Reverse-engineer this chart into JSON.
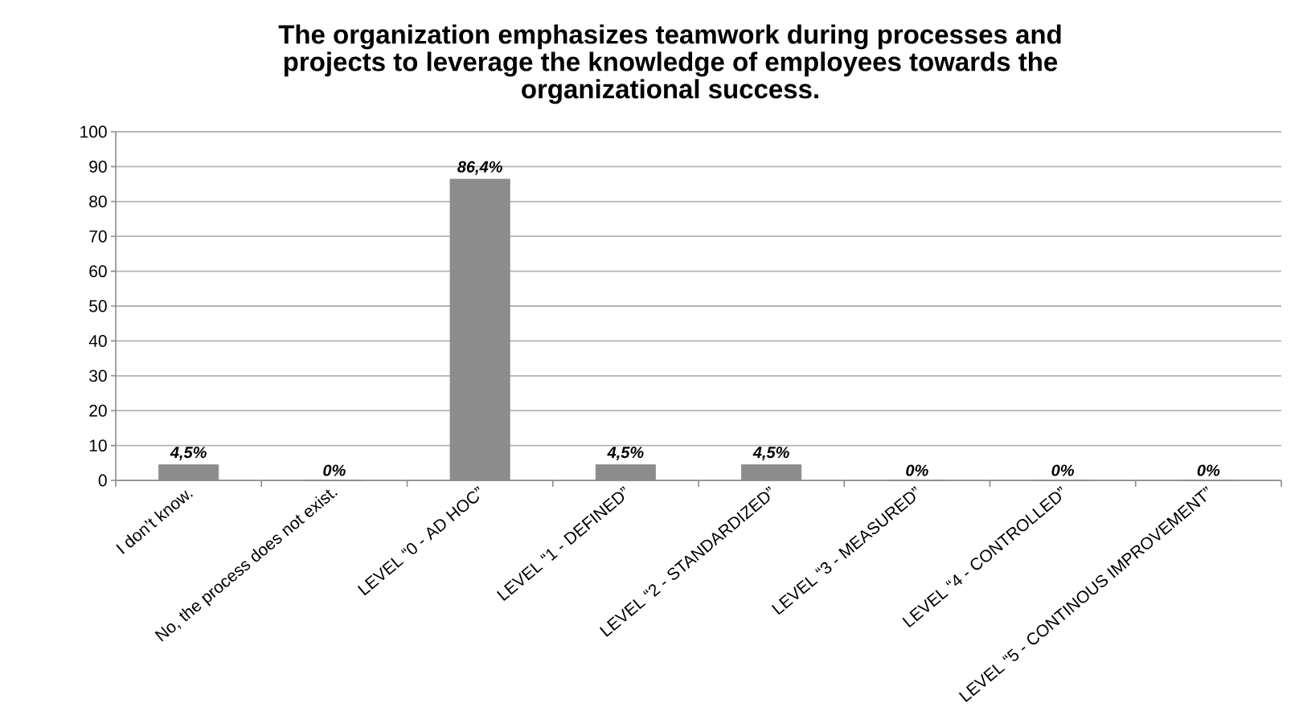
{
  "chart_data": {
    "type": "bar",
    "title": "The organization emphasizes teamwork during processes and projects to leverage the knowledge of employees towards the organizational success.",
    "categories": [
      "I don’t know.",
      "No, the process does not exist.",
      "LEVEL “0 - AD HOC”",
      "LEVEL “1 - DEFINED”",
      "LEVEL “2 - STANDARDIZED”",
      "LEVEL “3 - MEASURED”",
      "LEVEL “4 - CONTROLLED”",
      "LEVEL “5 - CONTINOUS IMPROVEMENT”"
    ],
    "values": [
      4.5,
      0,
      86.4,
      4.5,
      4.5,
      0,
      0,
      0
    ],
    "value_labels": [
      "4,5%",
      "0%",
      "86,4%",
      "4,5%",
      "4,5%",
      "0%",
      "0%",
      "0%"
    ],
    "color": "#8c8c8c",
    "ylim": [
      0,
      100
    ],
    "yticks": [
      0,
      10,
      20,
      30,
      40,
      50,
      60,
      70,
      80,
      90,
      100
    ],
    "grid": "y"
  }
}
